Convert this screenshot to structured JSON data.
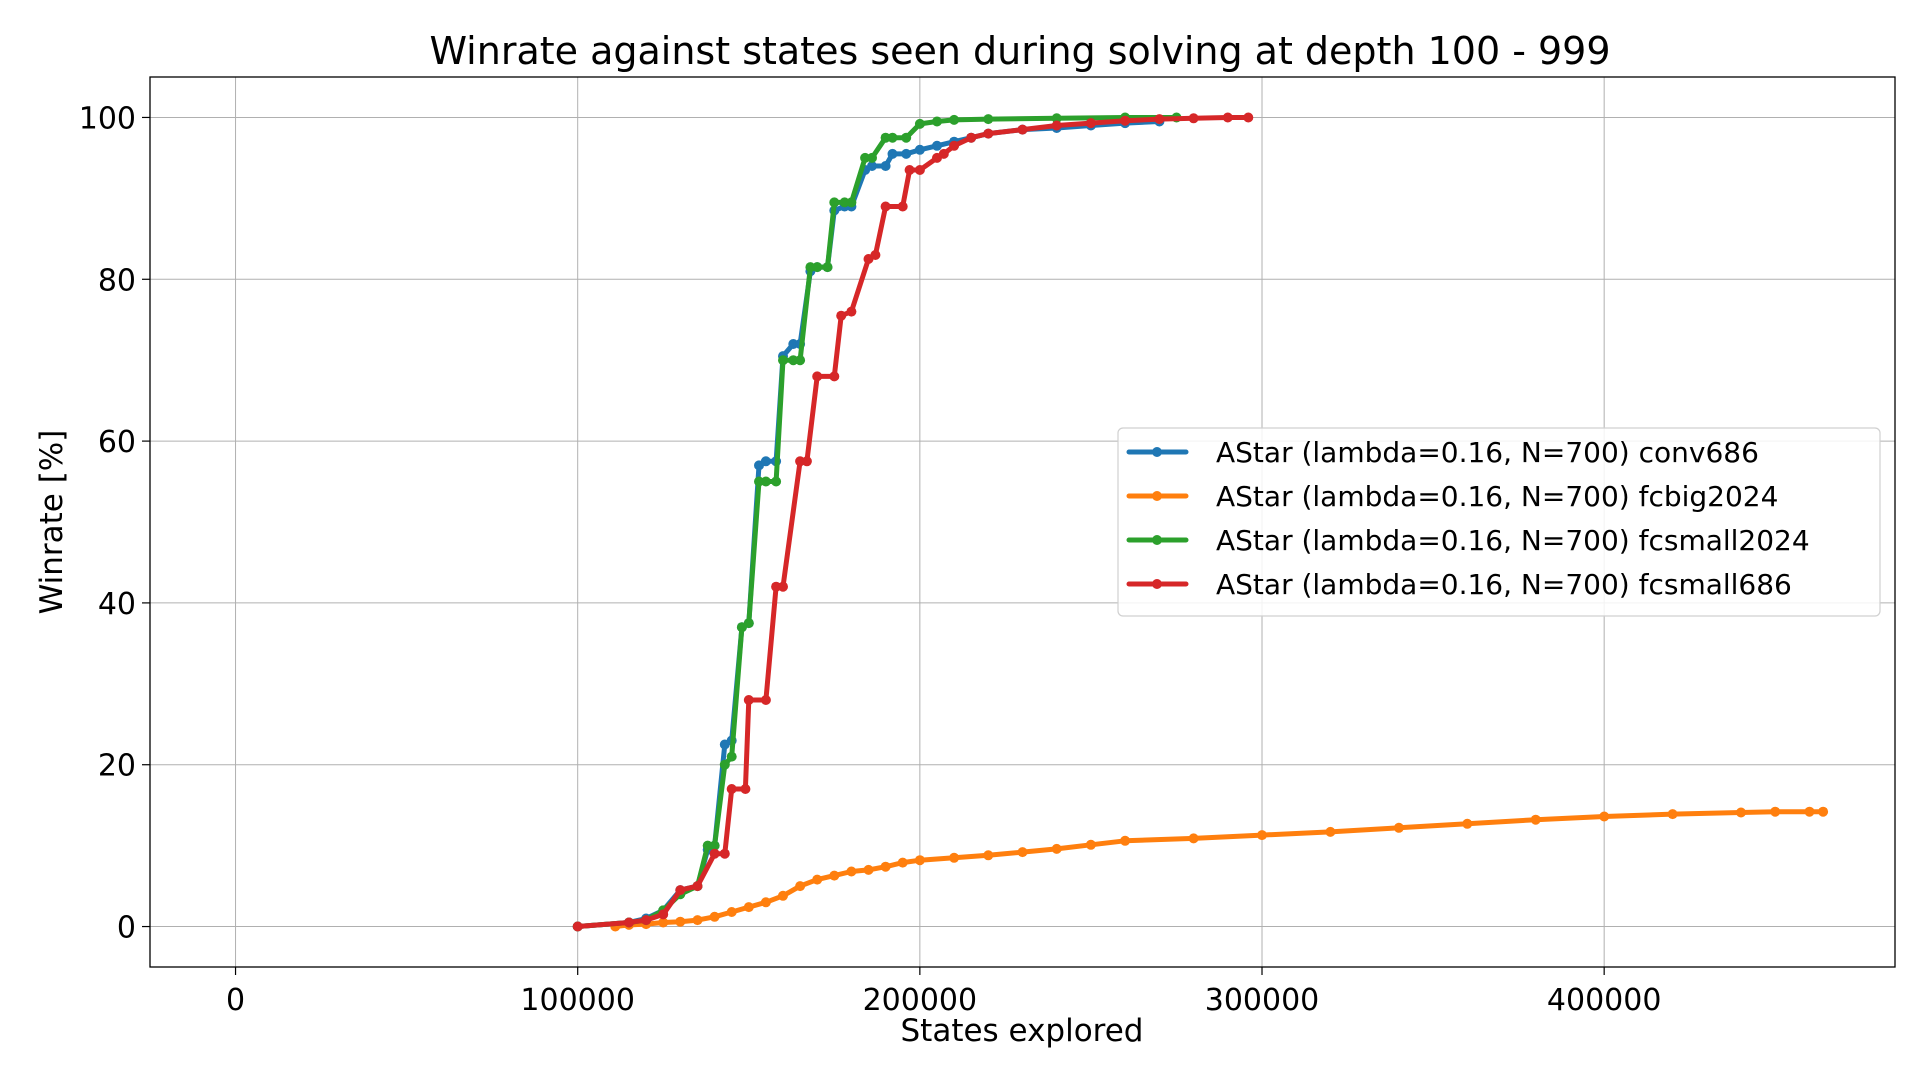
{
  "chart_data": {
    "type": "line",
    "title": "Winrate against states seen during solving at depth 100 - 999",
    "xlabel": "States explored",
    "ylabel": "Winrate [%]",
    "xlim": [
      -25000,
      485000
    ],
    "ylim": [
      -5,
      105
    ],
    "x_ticks": [
      0,
      100000,
      200000,
      300000,
      400000
    ],
    "y_ticks": [
      0,
      20,
      40,
      60,
      80,
      100
    ],
    "grid": true,
    "legend_position": "center-right",
    "series": [
      {
        "name": "AStar (lambda=0.16, N=700) conv686",
        "color": "#1f77b4",
        "x": [
          100000,
          115000,
          120000,
          125000,
          130000,
          135000,
          138000,
          140000,
          143000,
          145000,
          148000,
          150000,
          153000,
          155000,
          158000,
          160000,
          163000,
          165000,
          168000,
          170000,
          173000,
          175000,
          178000,
          180000,
          184000,
          186000,
          190000,
          192000,
          196000,
          200000,
          205000,
          210000,
          215000,
          220000,
          230000,
          240000,
          250000,
          260000,
          270000
        ],
        "y": [
          0,
          0.5,
          1,
          2,
          4.5,
          5,
          9.5,
          10,
          22.5,
          23,
          37,
          37.5,
          57,
          57.5,
          57.5,
          70.5,
          72,
          72,
          81,
          81.5,
          81.5,
          88.5,
          89,
          89,
          93.5,
          94,
          94,
          95.5,
          95.5,
          96,
          96.5,
          97,
          97.5,
          98,
          98.5,
          98.7,
          99,
          99.3,
          99.5
        ]
      },
      {
        "name": "AStar (lambda=0.16, N=700) fcbig2024",
        "color": "#ff7f0e",
        "x": [
          111000,
          115000,
          120000,
          125000,
          130000,
          135000,
          140000,
          145000,
          150000,
          155000,
          160000,
          165000,
          170000,
          175000,
          180000,
          185000,
          190000,
          195000,
          200000,
          210000,
          220000,
          230000,
          240000,
          250000,
          260000,
          280000,
          300000,
          320000,
          340000,
          360000,
          380000,
          400000,
          420000,
          440000,
          450000,
          460000,
          464000
        ],
        "y": [
          0,
          0.2,
          0.3,
          0.5,
          0.6,
          0.8,
          1.2,
          1.8,
          2.4,
          3.0,
          3.8,
          5.0,
          5.8,
          6.3,
          6.8,
          7.0,
          7.4,
          7.9,
          8.2,
          8.5,
          8.8,
          9.2,
          9.6,
          10.1,
          10.6,
          10.9,
          11.3,
          11.7,
          12.2,
          12.7,
          13.2,
          13.6,
          13.9,
          14.1,
          14.2,
          14.2,
          14.2
        ]
      },
      {
        "name": "AStar (lambda=0.16, N=700) fcsmall2024",
        "color": "#2ca02c",
        "x": [
          100000,
          115000,
          120000,
          125000,
          130000,
          135000,
          138000,
          140000,
          143000,
          145000,
          148000,
          150000,
          153000,
          155000,
          158000,
          160000,
          163000,
          165000,
          168000,
          170000,
          173000,
          175000,
          178000,
          180000,
          184000,
          186000,
          190000,
          192000,
          196000,
          200000,
          205000,
          210000,
          220000,
          240000,
          260000,
          275000
        ],
        "y": [
          0,
          0.5,
          0.8,
          2,
          4,
          5,
          10,
          10,
          20,
          21,
          37,
          37.5,
          55,
          55,
          55,
          70,
          70,
          70,
          81.5,
          81.5,
          81.5,
          89.5,
          89.5,
          89.5,
          95,
          95,
          97.5,
          97.5,
          97.5,
          99.2,
          99.5,
          99.7,
          99.8,
          99.9,
          100,
          100
        ]
      },
      {
        "name": "AStar (lambda=0.16, N=700) fcsmall686",
        "color": "#d62728",
        "x": [
          100000,
          115000,
          120000,
          125000,
          130000,
          135000,
          140000,
          143000,
          145000,
          149000,
          150000,
          155000,
          158000,
          160000,
          165000,
          167000,
          170000,
          175000,
          177000,
          180000,
          185000,
          187000,
          190000,
          195000,
          197000,
          200000,
          205000,
          207000,
          210000,
          215000,
          220000,
          230000,
          240000,
          250000,
          260000,
          270000,
          280000,
          290000,
          296000
        ],
        "y": [
          0,
          0.5,
          0.8,
          1.5,
          4.5,
          5,
          9,
          9,
          17,
          17,
          28,
          28,
          42,
          42,
          57.5,
          57.5,
          68,
          68,
          75.5,
          76,
          82.5,
          83,
          89,
          89,
          93.5,
          93.5,
          95,
          95.5,
          96.5,
          97.5,
          98,
          98.5,
          99,
          99.3,
          99.6,
          99.8,
          99.9,
          100,
          100
        ]
      }
    ]
  }
}
